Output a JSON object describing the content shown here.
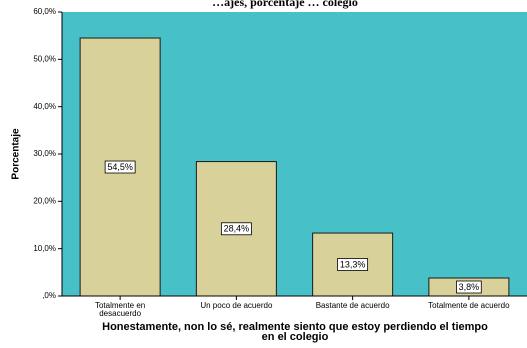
{
  "chart_data": {
    "type": "bar",
    "title": "…ajes, porcentaje … colegio",
    "categories": [
      "Totalmente en desacuerdo",
      "Un poco de acuerdo",
      "Bastante de acuerdo",
      "Totalmente de acuerdo"
    ],
    "category_lines": [
      [
        "Totalmente en",
        "desacuerdo"
      ],
      [
        "Un poco de acuerdo"
      ],
      [
        "Bastante de acuerdo"
      ],
      [
        "Totalmente de acuerdo"
      ]
    ],
    "values": [
      54.5,
      28.4,
      13.3,
      3.8
    ],
    "value_labels": [
      "54,5%",
      "28,4%",
      "13,3%",
      "3,8%"
    ],
    "ylabel": "Porcentaje",
    "xlabel_lines": [
      "Honestamente, non lo sé, realmente siento que estoy perdiendo el tiempo",
      "en el colegio"
    ],
    "ylim": [
      0,
      60
    ],
    "yticks": [
      0,
      10,
      20,
      30,
      40,
      50,
      60
    ],
    "ytick_labels": [
      ",0%",
      "10,0%",
      "20,0%",
      "30,0%",
      "40,0%",
      "50,0%",
      "60,0%"
    ],
    "grid": false,
    "legend": "none",
    "colors": {
      "plot_background": "#48C0C8",
      "bar_fill": "#D8D29A",
      "bar_stroke": "#1a1a1a"
    }
  }
}
